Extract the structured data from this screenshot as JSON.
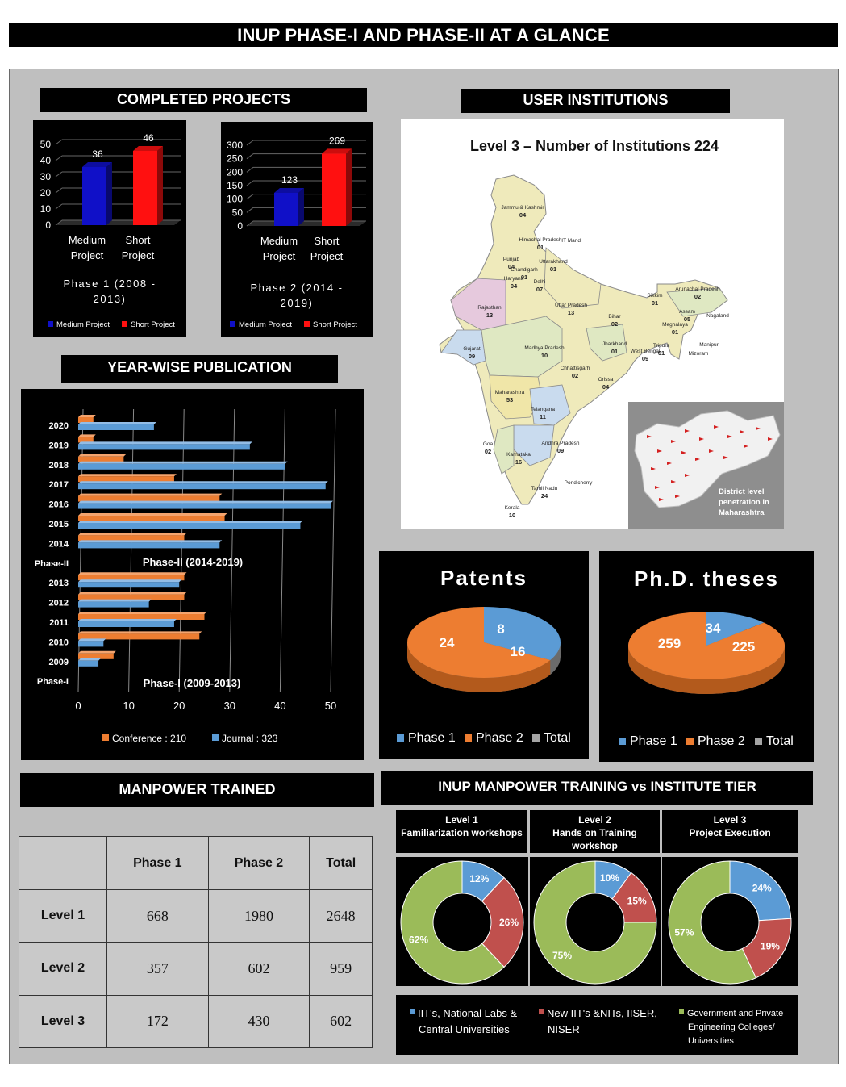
{
  "page_title": "INUP PHASE-I AND PHASE-II AT A GLANCE",
  "sections": {
    "completed_projects": "COMPLETED PROJECTS",
    "user_institutions": "USER INSTITUTIONS",
    "yearwise_publication": "YEAR-WISE PUBLICATION",
    "manpower_trained": "MANPOWER TRAINED",
    "training_vs_tier": "INUP MANPOWER TRAINING vs INSTITUTE TIER CLASSIFICATION"
  },
  "colors": {
    "blue": "#1010c8",
    "red": "#ff1010",
    "orange": "#ed7d31",
    "lightblue": "#5b9bd5",
    "green": "#9bbb59",
    "darkred": "#c0504d",
    "gray": "#a5a5a5"
  },
  "chart_data": [
    {
      "type": "bar",
      "categories": [
        "Medium Project",
        "Short Project"
      ],
      "cat_lines": [
        [
          "Medium",
          "Project"
        ],
        [
          "Short",
          "Project"
        ]
      ],
      "values": [
        36,
        46
      ],
      "yticks": [
        0,
        10,
        20,
        30,
        40,
        50
      ],
      "ylim": [
        0,
        50
      ],
      "xlabel": "Phase 1 (2008 - 2013)",
      "xlabel_lines": [
        "Phase 1 (2008 -",
        "2013)"
      ],
      "legend": [
        "Medium Project",
        "Short Project"
      ]
    },
    {
      "type": "bar",
      "categories": [
        "Medium Project",
        "Short Project"
      ],
      "cat_lines": [
        [
          "Medium",
          "Project"
        ],
        [
          "Short",
          "Project"
        ]
      ],
      "values": [
        123,
        269
      ],
      "yticks": [
        0,
        50,
        100,
        150,
        200,
        250,
        300
      ],
      "ylim": [
        0,
        300
      ],
      "xlabel": "Phase 2 (2014 - 2019)",
      "xlabel_lines": [
        "Phase 2 (2014 -",
        "2019)"
      ],
      "legend": [
        "Medium Project",
        "Short Project"
      ]
    },
    {
      "type": "bar",
      "orientation": "horizontal",
      "categories": [
        "2020",
        "2019",
        "2018",
        "2017",
        "2016",
        "2015",
        "2014",
        "Phase-II",
        "2013",
        "2012",
        "2011",
        "2010",
        "2009",
        "Phase-I"
      ],
      "series": [
        {
          "name": "Conference : 210",
          "values": [
            3,
            3,
            9,
            19,
            28,
            29,
            21,
            null,
            21,
            21,
            25,
            24,
            7,
            null
          ]
        },
        {
          "name": "Journal : 323",
          "values": [
            15,
            34,
            41,
            49,
            50,
            44,
            28,
            null,
            20,
            14,
            19,
            5,
            4,
            null
          ]
        }
      ],
      "xticks": [
        0,
        10,
        20,
        30,
        40,
        50
      ],
      "xlim": [
        0,
        50
      ],
      "group_labels": [
        "Phase-II (2014-2019)",
        "Phase-I (2009-2013)"
      ]
    },
    {
      "type": "pie",
      "title": "Patents",
      "labels": [
        "Phase 1",
        "Phase 2",
        "Total"
      ],
      "values": [
        8,
        16,
        24
      ]
    },
    {
      "type": "pie",
      "title": "Ph.D. theses",
      "labels": [
        "Phase 1",
        "Phase 2",
        "Total"
      ],
      "values": [
        34,
        225,
        259
      ]
    },
    {
      "type": "table",
      "columns": [
        "",
        "Phase 1",
        "Phase 2",
        "Total"
      ],
      "rows": [
        [
          "Level 1",
          "668",
          "1980",
          "2648"
        ],
        [
          "Level 2",
          "357",
          "602",
          "959"
        ],
        [
          "Level 3",
          "172",
          "430",
          "602"
        ]
      ]
    },
    {
      "type": "pie",
      "variant": "donut",
      "title_lines": [
        "Level 1",
        "Familiarization workshops"
      ],
      "labels": [
        "12%",
        "26%",
        "62%"
      ],
      "values": [
        12,
        26,
        62
      ]
    },
    {
      "type": "pie",
      "variant": "donut",
      "title_lines": [
        "Level 2",
        "Hands on Training",
        "workshop"
      ],
      "labels": [
        "10%",
        "15%",
        "75%"
      ],
      "values": [
        10,
        15,
        75
      ]
    },
    {
      "type": "pie",
      "variant": "donut",
      "title_lines": [
        "Level 3",
        "Project Execution"
      ],
      "labels": [
        "24%",
        "19%",
        "57%"
      ],
      "values": [
        24,
        19,
        57
      ]
    }
  ],
  "donut_legend": [
    [
      "IIT's, National Labs &",
      "Central Universities"
    ],
    [
      "New IIT's &NITs, IISER,",
      "NISER"
    ],
    [
      "Government and Private",
      "Engineering Colleges/",
      "Universities"
    ]
  ],
  "map": {
    "title": "Level 3 – Number of Institutions 224",
    "states": [
      [
        "Jammu & Kashmir",
        "04"
      ],
      [
        "Himachal Pradesh",
        "01"
      ],
      [
        "IIT Mandi",
        ""
      ],
      [
        "Punjab",
        "04"
      ],
      [
        "Uttarakhand",
        "01"
      ],
      [
        "Chandigarh",
        "01"
      ],
      [
        "Haryana",
        "04"
      ],
      [
        "Delhi",
        "07"
      ],
      [
        "Rajasthan",
        "13"
      ],
      [
        "Uttar Pradesh",
        "13"
      ],
      [
        "Sikkim",
        "01"
      ],
      [
        "Arunachal Pradesh",
        "02"
      ],
      [
        "Assam",
        "05"
      ],
      [
        "Nagaland",
        ""
      ],
      [
        "Meghalaya",
        "01"
      ],
      [
        "Manipur",
        ""
      ],
      [
        "Tripura",
        "01"
      ],
      [
        "Mizoram",
        ""
      ],
      [
        "Bihar",
        "02"
      ],
      [
        "Gujarat",
        "09"
      ],
      [
        "Madhya Pradesh",
        "10"
      ],
      [
        "Jharkhand",
        "01"
      ],
      [
        "West Bengal",
        "09"
      ],
      [
        "Chhattisgarh",
        "02"
      ],
      [
        "Orissa",
        "04"
      ],
      [
        "Maharashtra",
        "53"
      ],
      [
        "Telangana",
        "11"
      ],
      [
        "Goa",
        "02"
      ],
      [
        "Andhra Pradesh",
        "09"
      ],
      [
        "Karnataka",
        "16"
      ],
      [
        "Pondicherry",
        ""
      ],
      [
        "Tamil Nadu",
        "24"
      ],
      [
        "Kerala",
        "10"
      ]
    ],
    "inset_caption": [
      "District level",
      "penetration in",
      "Maharashtra"
    ]
  }
}
